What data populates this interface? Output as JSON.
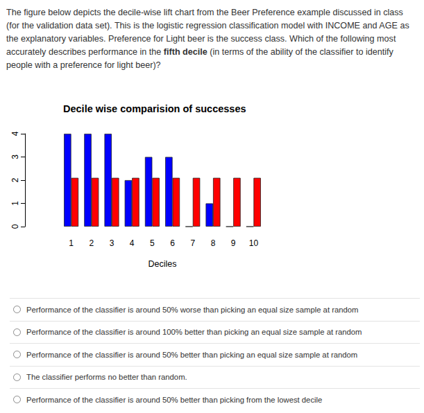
{
  "question": [
    {
      "text": "The figure below depicts the decile-wise lift chart from the Beer Preference example discussed in class (for the validation data set). This is the logistic regression classification model with INCOME and AGE as the explanatory variables. Preference for Light beer is the success class. Which of the following most accurately describes performance in the ",
      "bold": false
    },
    {
      "text": "fifth decile",
      "bold": true
    },
    {
      "text": " (in terms of the ability of the classifier to identify people with a preference for light beer)?",
      "bold": false
    }
  ],
  "chart_data": {
    "type": "bar",
    "title": "Decile wise comparision of successes",
    "x_label": "Deciles",
    "categories": [
      "1",
      "2",
      "3",
      "4",
      "5",
      "6",
      "7",
      "8",
      "9",
      "10"
    ],
    "series": [
      {
        "color": "#0000ff",
        "values": [
          4,
          4,
          4,
          2,
          3,
          3,
          0,
          1,
          0,
          0
        ]
      },
      {
        "color": "#ff0000",
        "values": [
          2.1,
          2.1,
          2.1,
          2.1,
          2.1,
          2.1,
          2.1,
          2.1,
          2.1,
          2.1
        ]
      }
    ],
    "ylim": [
      0,
      4
    ],
    "yticks": [
      0,
      1,
      2,
      3,
      4
    ],
    "grid": false
  },
  "options": [
    "Performance of the classifier is around 50% worse than picking an equal size sample at random",
    "Performance of the classifier is around 100% better than picking an equal size sample at random",
    "Performance of the classifier is around 50% better than picking an equal size sample at random",
    "The classifier performs no better than random.",
    "Performance of the classifier is around 50% better than picking from the lowest decile"
  ]
}
